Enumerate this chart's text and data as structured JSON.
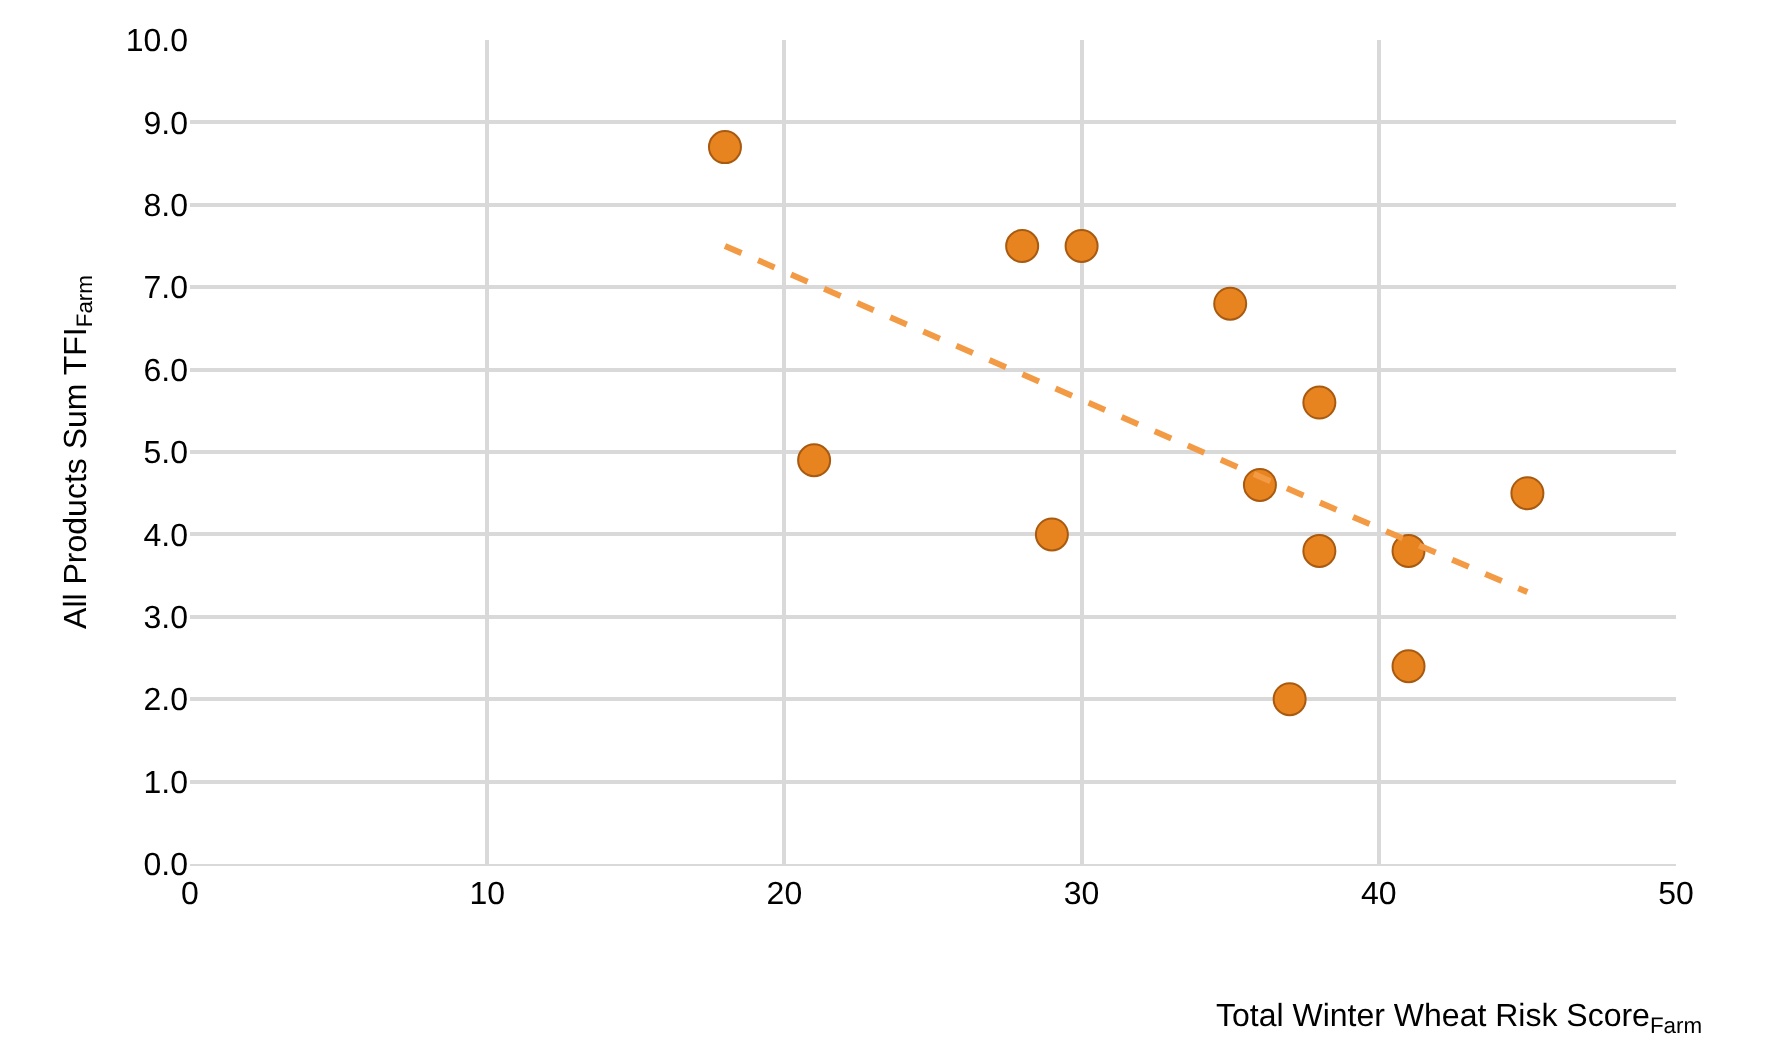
{
  "chart_data": {
    "type": "scatter",
    "xlabel": "Total Winter Wheat Risk Score$_{Farm}$",
    "ylabel": "All Products Sum TFI$_{Farm}$",
    "series": [
      {
        "color": "#e8841f",
        "marker": "circle",
        "x": [
          18,
          21,
          28,
          30,
          29,
          35,
          38,
          36,
          38,
          41,
          45,
          41,
          37
        ],
        "values": [
          8.7,
          4.9,
          7.5,
          7.5,
          4.0,
          6.8,
          5.6,
          4.6,
          3.8,
          3.8,
          4.5,
          2.4,
          2.0
        ]
      },
      {
        "type": "line",
        "color": "#f39a45",
        "line_style": "dashed",
        "marker": "none",
        "x": [
          18,
          45
        ],
        "values": [
          7.5,
          3.3
        ]
      }
    ],
    "xlim": [
      0,
      50
    ],
    "xticks": [
      0,
      10,
      20,
      30,
      40,
      50
    ],
    "ylim": [
      0,
      10
    ],
    "yticks": [
      {
        "value": 0,
        "label": "0.0"
      },
      {
        "value": 1,
        "label": "1.0"
      },
      {
        "value": 2,
        "label": "2.0"
      },
      {
        "value": 3,
        "label": "3.0"
      },
      {
        "value": 4,
        "label": "4.0"
      },
      {
        "value": 5,
        "label": "5.0"
      },
      {
        "value": 6,
        "label": "6.0"
      },
      {
        "value": 7,
        "label": "7.0"
      },
      {
        "value": 8,
        "label": "8.0"
      },
      {
        "value": 9,
        "label": "9.0"
      },
      {
        "value": 10,
        "label": "10.0"
      }
    ],
    "grid": true
  }
}
